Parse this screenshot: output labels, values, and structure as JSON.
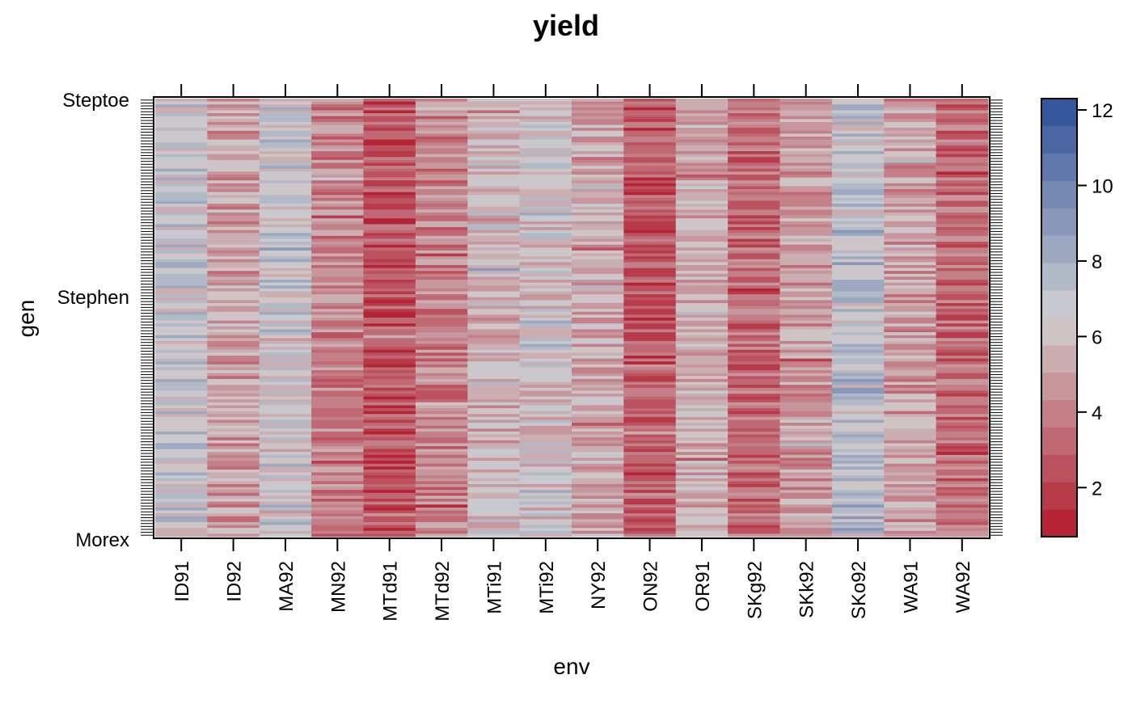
{
  "chart_data": {
    "type": "heatmap",
    "title": "yield",
    "xlabel": "env",
    "ylabel": "gen",
    "x_categories": [
      "ID91",
      "ID92",
      "MA92",
      "MN92",
      "MTd91",
      "MTd92",
      "MTi91",
      "MTi92",
      "NY92",
      "ON92",
      "OR91",
      "SKg92",
      "SKk92",
      "SKo92",
      "WA91",
      "WA92"
    ],
    "y_visible_labels": {
      "top": "Steptoe",
      "upper_middle": "Stephen",
      "bottom": "Morex"
    },
    "y_rows": 150,
    "value_range": [
      1,
      12
    ],
    "colorbar": {
      "ticks": [
        2,
        4,
        6,
        8,
        10,
        12
      ],
      "ylim": [
        0.7,
        12.3
      ]
    },
    "env_column_means": {
      "ID91": 6.8,
      "ID92": 4.9,
      "MA92": 6.6,
      "MN92": 4.1,
      "MTd91": 2.4,
      "MTd92": 4.0,
      "MTi91": 5.8,
      "MTi92": 6.2,
      "NY92": 5.3,
      "ON92": 2.8,
      "OR91": 5.3,
      "SKg92": 3.1,
      "SKk92": 4.8,
      "SKo92": 7.2,
      "WA91": 4.9,
      "WA92": 3.3
    },
    "colors": {
      "low": "#b2182b",
      "mid": "#d1d1d1",
      "high": "#2d4f99"
    }
  }
}
